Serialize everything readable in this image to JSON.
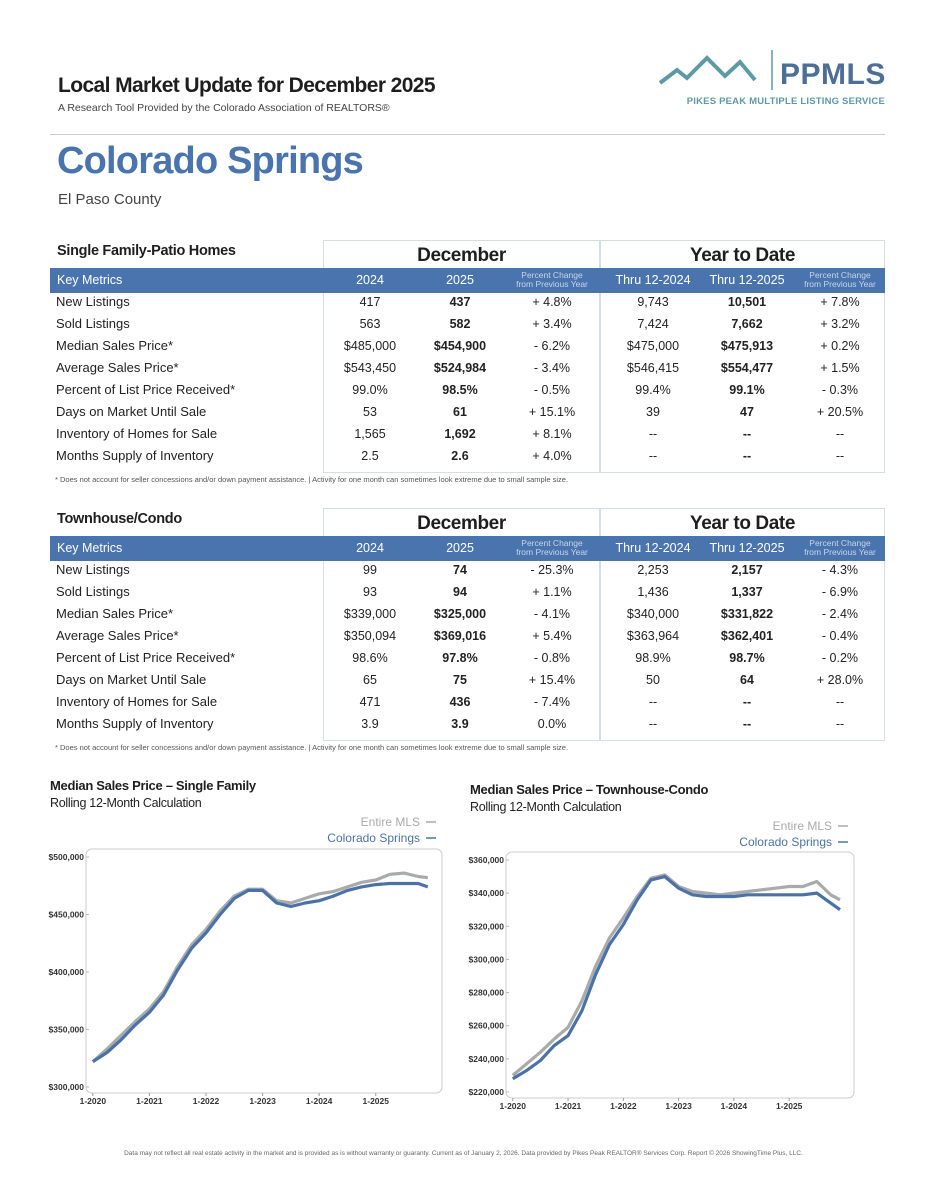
{
  "header": {
    "title": "Local Market Update for December 2025",
    "subtitle": "A Research Tool Provided by the Colorado Association of REALTORS®"
  },
  "logo": {
    "name": "PPMLS",
    "tagline": "PIKES PEAK MULTIPLE LISTING SERVICE"
  },
  "location": {
    "city": "Colorado Springs",
    "county": "El Paso County"
  },
  "tables": [
    {
      "title": "Single Family-Patio Homes",
      "group_headers": [
        "December",
        "Year to Date"
      ],
      "column_headers": [
        "Key Metrics",
        "2024",
        "2025",
        "Percent Change from Previous Year",
        "Thru 12-2024",
        "Thru 12-2025",
        "Percent Change from Previous Year"
      ],
      "rows": [
        [
          "New Listings",
          "417",
          "437",
          "+ 4.8%",
          "9,743",
          "10,501",
          "+ 7.8%"
        ],
        [
          "Sold Listings",
          "563",
          "582",
          "+ 3.4%",
          "7,424",
          "7,662",
          "+ 3.2%"
        ],
        [
          "Median Sales Price*",
          "$485,000",
          "$454,900",
          "- 6.2%",
          "$475,000",
          "$475,913",
          "+ 0.2%"
        ],
        [
          "Average Sales Price*",
          "$543,450",
          "$524,984",
          "- 3.4%",
          "$546,415",
          "$554,477",
          "+ 1.5%"
        ],
        [
          "Percent of List Price Received*",
          "99.0%",
          "98.5%",
          "- 0.5%",
          "99.4%",
          "99.1%",
          "- 0.3%"
        ],
        [
          "Days on Market Until Sale",
          "53",
          "61",
          "+ 15.1%",
          "39",
          "47",
          "+ 20.5%"
        ],
        [
          "Inventory of Homes for Sale",
          "1,565",
          "1,692",
          "+ 8.1%",
          "--",
          "--",
          "--"
        ],
        [
          "Months Supply of Inventory",
          "2.5",
          "2.6",
          "+ 4.0%",
          "--",
          "--",
          "--"
        ]
      ],
      "footnote": "* Does not account for seller concessions and/or down payment assistance. | Activity for one month can sometimes look extreme due to small sample size."
    },
    {
      "title": "Townhouse/Condo",
      "group_headers": [
        "December",
        "Year to Date"
      ],
      "column_headers": [
        "Key Metrics",
        "2024",
        "2025",
        "Percent Change from Previous Year",
        "Thru 12-2024",
        "Thru 12-2025",
        "Percent Change from Previous Year"
      ],
      "rows": [
        [
          "New Listings",
          "99",
          "74",
          "- 25.3%",
          "2,253",
          "2,157",
          "- 4.3%"
        ],
        [
          "Sold Listings",
          "93",
          "94",
          "+ 1.1%",
          "1,436",
          "1,337",
          "- 6.9%"
        ],
        [
          "Median Sales Price*",
          "$339,000",
          "$325,000",
          "- 4.1%",
          "$340,000",
          "$331,822",
          "- 2.4%"
        ],
        [
          "Average Sales Price*",
          "$350,094",
          "$369,016",
          "+ 5.4%",
          "$363,964",
          "$362,401",
          "- 0.4%"
        ],
        [
          "Percent of List Price Received*",
          "98.6%",
          "97.8%",
          "- 0.8%",
          "98.9%",
          "98.7%",
          "- 0.2%"
        ],
        [
          "Days on Market Until Sale",
          "65",
          "75",
          "+ 15.4%",
          "50",
          "64",
          "+ 28.0%"
        ],
        [
          "Inventory of Homes for Sale",
          "471",
          "436",
          "- 7.4%",
          "--",
          "--",
          "--"
        ],
        [
          "Months Supply of Inventory",
          "3.9",
          "3.9",
          "0.0%",
          "--",
          "--",
          "--"
        ]
      ],
      "footnote": "* Does not account for seller concessions and/or down payment assistance. | Activity for one month can sometimes look extreme due to small sample size."
    }
  ],
  "chart_data": [
    {
      "type": "line",
      "title": "Median Sales Price – Single Family",
      "subtitle": "Rolling 12-Month Calculation",
      "x": [
        2020,
        2020.25,
        2020.5,
        2020.75,
        2021,
        2021.25,
        2021.5,
        2021.75,
        2022,
        2022.25,
        2022.5,
        2022.75,
        2023,
        2023.25,
        2023.5,
        2023.75,
        2024,
        2024.25,
        2024.5,
        2024.75,
        2025,
        2025.25,
        2025.5,
        2025.75,
        2025.92
      ],
      "xlim": [
        2019.95,
        2026.1
      ],
      "xticks": [
        {
          "value": 2020,
          "label": "1-2020"
        },
        {
          "value": 2021,
          "label": "1-2021"
        },
        {
          "value": 2022,
          "label": "1-2022"
        },
        {
          "value": 2023,
          "label": "1-2023"
        },
        {
          "value": 2024,
          "label": "1-2024"
        },
        {
          "value": 2025,
          "label": "1-2025"
        }
      ],
      "ylim": [
        300000,
        500000
      ],
      "yticks": [
        {
          "value": 300000,
          "label": "$300,000"
        },
        {
          "value": 350000,
          "label": "$350,000"
        },
        {
          "value": 400000,
          "label": "$400,000"
        },
        {
          "value": 450000,
          "label": "$450,000"
        },
        {
          "value": 500000,
          "label": "$500,000"
        }
      ],
      "grid": false,
      "series": [
        {
          "name": "Entire MLS",
          "color": "#a9abaa",
          "values": [
            322000,
            333000,
            345000,
            357000,
            368000,
            383000,
            405000,
            424000,
            437000,
            453000,
            466000,
            472000,
            472000,
            462000,
            460000,
            464000,
            468000,
            470000,
            474000,
            478000,
            480000,
            485000,
            486000,
            483000,
            482000
          ]
        },
        {
          "name": "Colorado Springs",
          "color": "#4a72a8",
          "values": [
            322000,
            330000,
            341000,
            354000,
            365000,
            380000,
            402000,
            421000,
            434000,
            450000,
            464000,
            471000,
            471000,
            460000,
            457000,
            460000,
            462000,
            466000,
            471000,
            474000,
            476000,
            477000,
            477000,
            477000,
            474000
          ]
        }
      ]
    },
    {
      "type": "line",
      "title": "Median Sales Price – Townhouse-Condo",
      "subtitle": "Rolling 12-Month Calculation",
      "x": [
        2020,
        2020.25,
        2020.5,
        2020.75,
        2021,
        2021.25,
        2021.5,
        2021.75,
        2022,
        2022.25,
        2022.5,
        2022.75,
        2023,
        2023.25,
        2023.5,
        2023.75,
        2024,
        2024.25,
        2024.5,
        2024.75,
        2025,
        2025.25,
        2025.5,
        2025.75,
        2025.92
      ],
      "xlim": [
        2019.95,
        2026.1
      ],
      "xticks": [
        {
          "value": 2020,
          "label": "1-2020"
        },
        {
          "value": 2021,
          "label": "1-2021"
        },
        {
          "value": 2022,
          "label": "1-2022"
        },
        {
          "value": 2023,
          "label": "1-2023"
        },
        {
          "value": 2024,
          "label": "1-2024"
        },
        {
          "value": 2025,
          "label": "1-2025"
        }
      ],
      "ylim": [
        220000,
        360000
      ],
      "yticks": [
        {
          "value": 220000,
          "label": "$220,000"
        },
        {
          "value": 240000,
          "label": "$240,000"
        },
        {
          "value": 260000,
          "label": "$260,000"
        },
        {
          "value": 280000,
          "label": "$280,000"
        },
        {
          "value": 300000,
          "label": "$300,000"
        },
        {
          "value": 320000,
          "label": "$320,000"
        },
        {
          "value": 340000,
          "label": "$340,000"
        },
        {
          "value": 360000,
          "label": "$360,000"
        }
      ],
      "grid": false,
      "series": [
        {
          "name": "Entire MLS",
          "color": "#a9abaa",
          "values": [
            230000,
            237000,
            244000,
            252000,
            259000,
            275000,
            296000,
            313000,
            325000,
            338000,
            349000,
            351000,
            344000,
            341000,
            340000,
            339000,
            340000,
            341000,
            342000,
            343000,
            344000,
            344000,
            347000,
            339000,
            336000
          ]
        },
        {
          "name": "Colorado Springs",
          "color": "#4a72a8",
          "values": [
            228000,
            233000,
            239000,
            248000,
            254000,
            269000,
            291000,
            309000,
            321000,
            336000,
            348000,
            350000,
            343000,
            339000,
            338000,
            338000,
            338000,
            339000,
            339000,
            339000,
            339000,
            339000,
            340000,
            334000,
            330000
          ]
        }
      ]
    }
  ],
  "footer": "Data may not reflect all real estate activity in the market and is provided as is without warranty or guaranty. Current as of January 2, 2026. Data provided by Pikes Peak REALTOR® Services Corp. Report © 2026 ShowingTime Plus, LLC."
}
